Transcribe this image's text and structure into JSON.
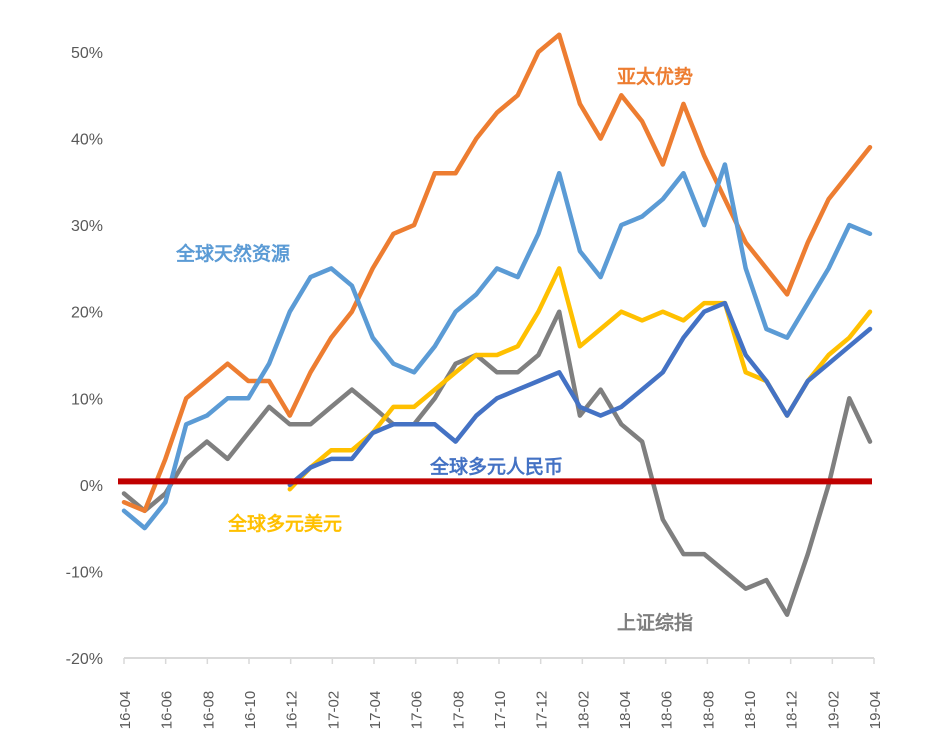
{
  "chart_data": {
    "type": "line",
    "title": "",
    "xlabel": "",
    "ylabel": "",
    "ylim": [
      -20,
      50
    ],
    "yticks": [
      -20,
      -10,
      0,
      10,
      20,
      30,
      40,
      50
    ],
    "ytick_labels": [
      "-20%",
      "-10%",
      "0%",
      "10%",
      "20%",
      "30%",
      "40%",
      "50%"
    ],
    "xtick_labels": [
      "16-04",
      "16-06",
      "16-08",
      "16-10",
      "16-12",
      "17-02",
      "17-04",
      "17-06",
      "17-08",
      "17-10",
      "17-12",
      "18-02",
      "18-04",
      "18-06",
      "18-08",
      "18-10",
      "18-12",
      "19-02",
      "19-04"
    ],
    "x": [
      "16-04",
      "16-05",
      "16-06",
      "16-07",
      "16-08",
      "16-09",
      "16-10",
      "16-11",
      "16-12",
      "17-01",
      "17-02",
      "17-03",
      "17-04",
      "17-05",
      "17-06",
      "17-07",
      "17-08",
      "17-09",
      "17-10",
      "17-11",
      "17-12",
      "18-01",
      "18-02",
      "18-03",
      "18-04",
      "18-05",
      "18-06",
      "18-07",
      "18-08",
      "18-09",
      "18-10",
      "18-11",
      "18-12",
      "19-01",
      "19-02",
      "19-03",
      "19-04"
    ],
    "grid": false,
    "legend": "inline labels",
    "reference_line": {
      "y": 0.4,
      "color": "#C00000"
    },
    "series": [
      {
        "name": "亚太优势",
        "color": "#ED7D31",
        "values": [
          -2,
          -3,
          3,
          10,
          12,
          14,
          12,
          12,
          8,
          13,
          17,
          20,
          25,
          29,
          30,
          36,
          36,
          40,
          43,
          45,
          50,
          52,
          44,
          40,
          45,
          42,
          37,
          44,
          38,
          33,
          28,
          25,
          22,
          28,
          33,
          36,
          39
        ]
      },
      {
        "name": "全球天然资源",
        "color": "#5B9BD5",
        "values": [
          -3,
          -5,
          -2,
          7,
          8,
          10,
          10,
          14,
          20,
          24,
          25,
          23,
          17,
          14,
          13,
          16,
          20,
          22,
          25,
          24,
          29,
          36,
          27,
          24,
          30,
          31,
          33,
          36,
          30,
          37,
          25,
          18,
          17,
          21,
          25,
          30,
          29
        ]
      },
      {
        "name": "全球多元美元",
        "color": "#FFC000",
        "values": [
          null,
          null,
          null,
          null,
          null,
          null,
          null,
          null,
          -0.5,
          2,
          4,
          4,
          6,
          9,
          9,
          11,
          13,
          15,
          15,
          16,
          20,
          25,
          16,
          18,
          20,
          19,
          20,
          19,
          21,
          21,
          13,
          12,
          8,
          12,
          15,
          17,
          20
        ]
      },
      {
        "name": "全球多元人民币",
        "color": "#4472C4",
        "values": [
          null,
          null,
          null,
          null,
          null,
          null,
          null,
          null,
          0,
          2,
          3,
          3,
          6,
          7,
          7,
          7,
          5,
          8,
          10,
          11,
          12,
          13,
          9,
          8,
          9,
          11,
          13,
          17,
          20,
          21,
          15,
          12,
          8,
          12,
          14,
          16,
          18
        ]
      },
      {
        "name": "上证综指",
        "color": "#7F7F7F",
        "values": [
          -1,
          -3,
          -1,
          3,
          5,
          3,
          6,
          9,
          7,
          7,
          9,
          11,
          9,
          7,
          7,
          10,
          14,
          15,
          13,
          13,
          15,
          20,
          8,
          11,
          7,
          5,
          -4,
          -8,
          -8,
          -10,
          -12,
          -11,
          -15,
          -8,
          0,
          10,
          5
        ]
      }
    ]
  }
}
